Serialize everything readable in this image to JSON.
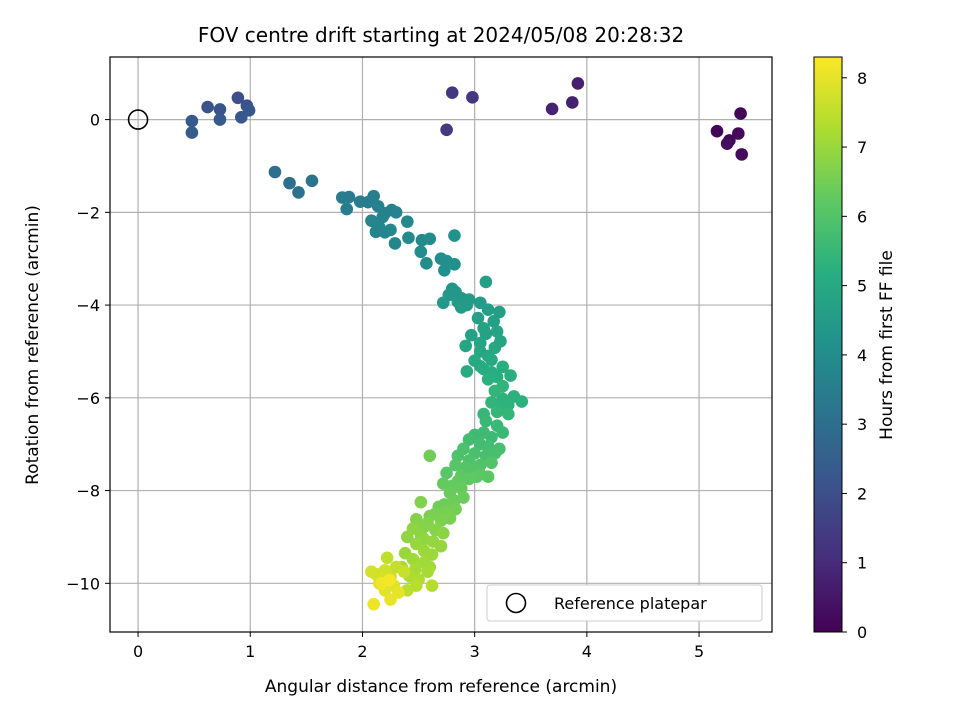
{
  "chart_data": {
    "type": "scatter",
    "title": "FOV centre drift starting at 2024/05/08 20:28:32",
    "xlabel": "Angular distance from reference (arcmin)",
    "ylabel": "Rotation from reference (arcmin)",
    "xlim": [
      -0.25,
      5.65
    ],
    "ylim": [
      -11.05,
      1.35
    ],
    "xticks": [
      0,
      1,
      2,
      3,
      4,
      5
    ],
    "yticks": [
      0,
      -2,
      -4,
      -6,
      -8,
      -10
    ],
    "grid": true,
    "colorbar": {
      "label": "Hours from first FF file",
      "range": [
        0,
        8.3
      ],
      "ticks": [
        0,
        1,
        2,
        3,
        4,
        5,
        6,
        7,
        8
      ],
      "colormap": "viridis"
    },
    "reference": {
      "x": 0,
      "y": 0
    },
    "legend": {
      "position": "lower-right",
      "entries": [
        "Reference platepar"
      ]
    },
    "points": [
      [
        5.37,
        0.13,
        0.05
      ],
      [
        5.16,
        -0.25,
        0.1
      ],
      [
        5.27,
        -0.45,
        0.15
      ],
      [
        5.35,
        -0.3,
        0.2
      ],
      [
        5.38,
        -0.75,
        0.25
      ],
      [
        5.25,
        -0.52,
        0.3
      ],
      [
        3.92,
        0.78,
        0.7
      ],
      [
        3.87,
        0.37,
        0.75
      ],
      [
        3.69,
        0.23,
        0.8
      ],
      [
        2.98,
        0.48,
        1.3
      ],
      [
        2.8,
        0.58,
        1.35
      ],
      [
        2.75,
        -0.22,
        1.4
      ],
      [
        0.89,
        0.47,
        2.0
      ],
      [
        0.97,
        0.3,
        2.05
      ],
      [
        0.62,
        0.27,
        2.1
      ],
      [
        0.73,
        0.22,
        2.15
      ],
      [
        0.99,
        0.2,
        2.2
      ],
      [
        0.92,
        0.05,
        2.25
      ],
      [
        0.73,
        0.0,
        2.3
      ],
      [
        0.48,
        -0.03,
        2.35
      ],
      [
        0.48,
        -0.28,
        2.4
      ],
      [
        1.22,
        -1.13,
        3.0
      ],
      [
        1.35,
        -1.37,
        3.05
      ],
      [
        1.43,
        -1.57,
        3.1
      ],
      [
        1.55,
        -1.32,
        3.15
      ],
      [
        1.82,
        -1.68,
        3.4
      ],
      [
        1.88,
        -1.67,
        3.42
      ],
      [
        1.86,
        -1.93,
        3.45
      ],
      [
        1.98,
        -1.77,
        3.5
      ],
      [
        2.05,
        -1.78,
        3.52
      ],
      [
        2.1,
        -1.65,
        3.55
      ],
      [
        2.14,
        -1.87,
        3.57
      ],
      [
        2.2,
        -2.02,
        3.6
      ],
      [
        2.26,
        -1.95,
        3.62
      ],
      [
        2.3,
        -2.0,
        3.65
      ],
      [
        2.18,
        -2.1,
        3.67
      ],
      [
        2.08,
        -2.18,
        3.7
      ],
      [
        2.15,
        -2.32,
        3.72
      ],
      [
        2.12,
        -2.42,
        3.75
      ],
      [
        2.2,
        -2.43,
        3.77
      ],
      [
        2.25,
        -2.38,
        3.8
      ],
      [
        2.29,
        -2.67,
        3.82
      ],
      [
        2.4,
        -2.2,
        3.85
      ],
      [
        2.41,
        -2.55,
        3.9
      ],
      [
        2.53,
        -2.6,
        3.92
      ],
      [
        2.6,
        -2.57,
        3.95
      ],
      [
        2.52,
        -2.85,
        3.97
      ],
      [
        2.57,
        -3.1,
        4.0
      ],
      [
        2.7,
        -3.0,
        4.05
      ],
      [
        2.75,
        -3.05,
        4.07
      ],
      [
        2.73,
        -3.25,
        4.1
      ],
      [
        2.82,
        -3.12,
        4.12
      ],
      [
        2.82,
        -2.5,
        4.15
      ],
      [
        2.8,
        -3.65,
        4.3
      ],
      [
        2.77,
        -3.78,
        4.35
      ],
      [
        2.83,
        -3.72,
        4.37
      ],
      [
        2.88,
        -3.85,
        4.4
      ],
      [
        2.72,
        -3.95,
        4.42
      ],
      [
        2.85,
        -3.93,
        4.45
      ],
      [
        2.95,
        -3.88,
        4.47
      ],
      [
        2.93,
        -4.0,
        4.5
      ],
      [
        2.88,
        -4.05,
        4.52
      ],
      [
        3.05,
        -3.95,
        4.55
      ],
      [
        3.1,
        -3.5,
        4.6
      ],
      [
        3.12,
        -4.1,
        4.62
      ],
      [
        3.22,
        -4.15,
        4.65
      ],
      [
        3.03,
        -4.28,
        4.67
      ],
      [
        3.17,
        -4.35,
        4.7
      ],
      [
        3.08,
        -4.5,
        4.72
      ],
      [
        2.97,
        -4.65,
        4.75
      ],
      [
        3.1,
        -4.62,
        4.77
      ],
      [
        3.2,
        -4.57,
        4.8
      ],
      [
        3.23,
        -4.78,
        4.82
      ],
      [
        3.05,
        -4.82,
        4.85
      ],
      [
        2.92,
        -4.88,
        4.87
      ],
      [
        3.18,
        -4.92,
        4.9
      ],
      [
        3.05,
        -5.0,
        4.92
      ],
      [
        3.12,
        -5.1,
        4.95
      ],
      [
        3.15,
        -5.18,
        5.0
      ],
      [
        3.0,
        -5.2,
        5.02
      ],
      [
        3.05,
        -5.32,
        5.05
      ],
      [
        2.93,
        -5.43,
        5.07
      ],
      [
        3.08,
        -5.38,
        5.1
      ],
      [
        3.15,
        -5.45,
        5.12
      ],
      [
        3.25,
        -5.33,
        5.15
      ],
      [
        3.32,
        -5.52,
        5.17
      ],
      [
        3.2,
        -5.55,
        5.2
      ],
      [
        3.12,
        -5.6,
        5.22
      ],
      [
        3.35,
        -5.97,
        5.25
      ],
      [
        3.42,
        -6.08,
        5.27
      ],
      [
        3.25,
        -6.02,
        5.3
      ],
      [
        3.3,
        -6.15,
        5.32
      ],
      [
        3.22,
        -6.2,
        5.35
      ],
      [
        3.15,
        -6.1,
        5.37
      ],
      [
        3.18,
        -5.85,
        5.4
      ],
      [
        3.25,
        -5.75,
        5.42
      ],
      [
        3.2,
        -6.3,
        5.45
      ],
      [
        3.3,
        -6.35,
        5.47
      ],
      [
        3.08,
        -6.35,
        5.5
      ],
      [
        3.1,
        -6.5,
        5.52
      ],
      [
        3.2,
        -6.6,
        5.55
      ],
      [
        3.25,
        -6.75,
        5.57
      ],
      [
        3.15,
        -6.85,
        5.6
      ],
      [
        3.08,
        -6.75,
        5.62
      ],
      [
        3.0,
        -6.8,
        5.65
      ],
      [
        2.95,
        -6.9,
        5.7
      ],
      [
        3.05,
        -7.0,
        5.72
      ],
      [
        3.12,
        -7.05,
        5.75
      ],
      [
        3.22,
        -7.1,
        5.77
      ],
      [
        3.18,
        -7.2,
        5.8
      ],
      [
        3.1,
        -7.25,
        5.82
      ],
      [
        3.0,
        -7.2,
        5.85
      ],
      [
        2.9,
        -7.1,
        5.87
      ],
      [
        2.85,
        -7.25,
        5.9
      ],
      [
        2.95,
        -7.35,
        5.92
      ],
      [
        3.05,
        -7.45,
        5.95
      ],
      [
        3.15,
        -7.4,
        6.0
      ],
      [
        3.0,
        -7.55,
        6.02
      ],
      [
        2.92,
        -7.5,
        6.05
      ],
      [
        2.83,
        -7.45,
        6.07
      ],
      [
        2.75,
        -7.62,
        6.1
      ],
      [
        3.05,
        -7.65,
        6.12
      ],
      [
        3.12,
        -7.7,
        6.15
      ],
      [
        3.02,
        -7.7,
        6.17
      ],
      [
        2.88,
        -7.68,
        6.2
      ],
      [
        2.95,
        -7.75,
        6.22
      ],
      [
        2.85,
        -7.8,
        6.25
      ],
      [
        2.8,
        -7.9,
        6.27
      ],
      [
        2.72,
        -7.85,
        6.3
      ],
      [
        2.88,
        -7.95,
        6.32
      ],
      [
        2.78,
        -8.05,
        6.35
      ],
      [
        2.9,
        -8.15,
        6.37
      ],
      [
        2.82,
        -8.22,
        6.4
      ],
      [
        2.73,
        -8.3,
        6.42
      ],
      [
        2.68,
        -8.35,
        6.45
      ],
      [
        2.6,
        -7.25,
        6.47
      ],
      [
        2.83,
        -8.4,
        6.5
      ],
      [
        2.75,
        -8.45,
        6.55
      ],
      [
        2.65,
        -8.5,
        6.57
      ],
      [
        2.6,
        -8.55,
        6.6
      ],
      [
        2.78,
        -8.6,
        6.62
      ],
      [
        2.7,
        -8.65,
        6.65
      ],
      [
        2.52,
        -8.25,
        6.67
      ],
      [
        2.58,
        -8.7,
        6.7
      ],
      [
        2.48,
        -8.62,
        6.72
      ],
      [
        2.55,
        -8.78,
        6.75
      ],
      [
        2.65,
        -8.85,
        6.77
      ],
      [
        2.72,
        -8.92,
        6.8
      ],
      [
        2.52,
        -8.95,
        6.82
      ],
      [
        2.45,
        -8.82,
        6.85
      ],
      [
        2.4,
        -9.0,
        6.87
      ],
      [
        2.55,
        -9.05,
        6.9
      ],
      [
        2.63,
        -9.1,
        6.92
      ],
      [
        2.7,
        -9.2,
        6.95
      ],
      [
        2.48,
        -9.15,
        6.97
      ],
      [
        2.38,
        -9.35,
        7.0
      ],
      [
        2.55,
        -9.3,
        7.02
      ],
      [
        2.62,
        -9.38,
        7.05
      ],
      [
        2.45,
        -9.48,
        7.07
      ],
      [
        2.55,
        -9.55,
        7.1
      ],
      [
        2.6,
        -9.65,
        7.12
      ],
      [
        2.47,
        -9.7,
        7.15
      ],
      [
        2.58,
        -9.75,
        7.17
      ],
      [
        2.35,
        -9.65,
        7.2
      ],
      [
        2.42,
        -9.85,
        7.25
      ],
      [
        2.5,
        -9.92,
        7.3
      ],
      [
        2.62,
        -10.05,
        7.35
      ],
      [
        2.48,
        -10.05,
        7.4
      ],
      [
        2.4,
        -10.15,
        7.45
      ],
      [
        2.22,
        -9.45,
        7.5
      ],
      [
        2.3,
        -9.65,
        7.55
      ],
      [
        2.37,
        -9.75,
        7.6
      ],
      [
        2.25,
        -9.85,
        7.65
      ],
      [
        2.2,
        -9.72,
        7.7
      ],
      [
        2.12,
        -9.8,
        7.72
      ],
      [
        2.08,
        -9.75,
        7.75
      ],
      [
        2.18,
        -9.9,
        7.8
      ],
      [
        2.15,
        -10.0,
        7.85
      ],
      [
        2.28,
        -10.05,
        7.9
      ],
      [
        2.2,
        -10.15,
        7.95
      ],
      [
        2.32,
        -10.2,
        8.0
      ],
      [
        2.25,
        -10.35,
        8.05
      ],
      [
        2.1,
        -10.45,
        8.1
      ],
      [
        2.17,
        -10.0,
        8.15
      ],
      [
        2.24,
        -9.93,
        8.2
      ]
    ]
  }
}
